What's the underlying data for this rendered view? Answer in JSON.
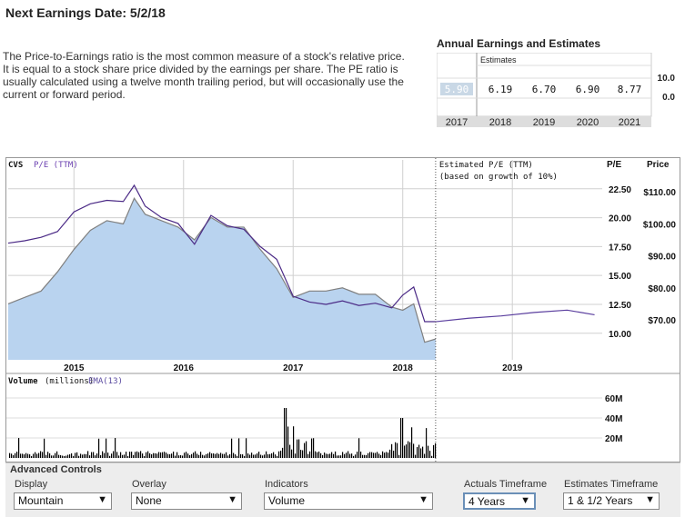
{
  "header": {
    "title": "Next Earnings Date: 5/2/18"
  },
  "description": "The Price-to-Earnings ratio is the most common measure of a stock's relative price. It is equal to a stock share price divided by the earnings per share. The PE ratio is usually calculated using a twelve month trailing period, but will occasionally use the current or forward period.",
  "annual": {
    "title": "Annual Earnings and Estimates",
    "estimates_label": "Estimates",
    "axis_max": "10.0",
    "axis_min": "0.0",
    "years": [
      "2017",
      "2018",
      "2019",
      "2020",
      "2021"
    ],
    "values": [
      "5.90",
      "6.19",
      "6.70",
      "6.90",
      "8.77"
    ]
  },
  "chart": {
    "ticker": "CVS",
    "series_label": "P/E (TTM)",
    "estimated_label_1": "Estimated P/E (TTM)",
    "estimated_label_2": "(based on growth of 10%)",
    "pe_header": "P/E",
    "price_header": "Price",
    "pe_ticks": [
      "22.50",
      "20.00",
      "17.50",
      "15.00",
      "12.50",
      "10.00"
    ],
    "price_ticks": [
      "$110.00",
      "$100.00",
      "$90.00",
      "$80.00",
      "$70.00"
    ],
    "x_labels": [
      "2015",
      "2016",
      "2017",
      "2018",
      "2019"
    ],
    "volume_label": "Volume",
    "volume_units": "(millions)",
    "volume_ema": "EMA(13)",
    "volume_ticks": [
      "60M",
      "40M",
      "20M"
    ]
  },
  "chart_data": {
    "type": "line",
    "x_labels": [
      "2015",
      "2016",
      "2017",
      "2018",
      "2019"
    ],
    "pe_ticks": [
      22.5,
      20.0,
      17.5,
      15.0,
      12.5,
      10.0
    ],
    "price_ticks": [
      110,
      100,
      90,
      80,
      70
    ],
    "series": [
      {
        "name": "P/E (TTM)",
        "x": [
          2014.4,
          2014.55,
          2014.7,
          2014.85,
          2015.0,
          2015.15,
          2015.3,
          2015.45,
          2015.55,
          2015.65,
          2015.8,
          2015.95,
          2016.1,
          2016.25,
          2016.4,
          2016.55,
          2016.7,
          2016.85,
          2017.0,
          2017.15,
          2017.3,
          2017.45,
          2017.6,
          2017.75,
          2017.9,
          2018.0,
          2018.1,
          2018.2,
          2018.3
        ],
        "values": [
          17.8,
          18.0,
          18.3,
          18.8,
          20.5,
          21.2,
          21.5,
          21.4,
          22.8,
          21.0,
          20.0,
          19.5,
          17.7,
          20.2,
          19.3,
          19.0,
          17.5,
          16.4,
          13.2,
          12.7,
          12.5,
          12.8,
          12.4,
          12.6,
          12.2,
          13.3,
          14.0,
          11.0,
          11.0
        ]
      },
      {
        "name": "Price",
        "x": [
          2014.4,
          2014.55,
          2014.7,
          2014.85,
          2015.0,
          2015.15,
          2015.3,
          2015.45,
          2015.55,
          2015.65,
          2015.8,
          2015.95,
          2016.1,
          2016.25,
          2016.4,
          2016.55,
          2016.7,
          2016.85,
          2017.0,
          2017.15,
          2017.3,
          2017.45,
          2017.6,
          2017.75,
          2017.9,
          2018.0,
          2018.1,
          2018.2,
          2018.3
        ],
        "values": [
          75,
          77,
          79,
          85,
          92,
          98,
          101,
          100,
          108,
          103,
          101,
          99,
          95,
          102,
          99,
          99,
          92,
          86,
          77,
          79,
          79,
          80,
          78,
          78,
          74,
          73,
          75,
          63,
          64
        ]
      },
      {
        "name": "Estimated P/E (TTM)",
        "x": [
          2018.3,
          2018.6,
          2018.9,
          2019.2,
          2019.5,
          2019.75
        ],
        "values": [
          11.0,
          11.3,
          11.5,
          11.8,
          12.0,
          11.6
        ]
      }
    ],
    "volume_ticks": [
      60,
      40,
      20
    ],
    "volume_units": "millions"
  },
  "controls": {
    "title": "Advanced Controls",
    "display": {
      "label": "Display",
      "value": "Mountain"
    },
    "overlay": {
      "label": "Overlay",
      "value": "None"
    },
    "indicators": {
      "label": "Indicators",
      "value": "Volume"
    },
    "actuals": {
      "label": "Actuals Timeframe",
      "value": "4 Years"
    },
    "estimates": {
      "label": "Estimates Timeframe",
      "value": "1 & 1/2 Years"
    }
  },
  "colors": {
    "pe_line": "#4b2a86",
    "price_line": "#808080",
    "mountain_fill": "#b9d3ef",
    "volume_bars": "#000000",
    "estimate_line": "#5a3e9e"
  }
}
